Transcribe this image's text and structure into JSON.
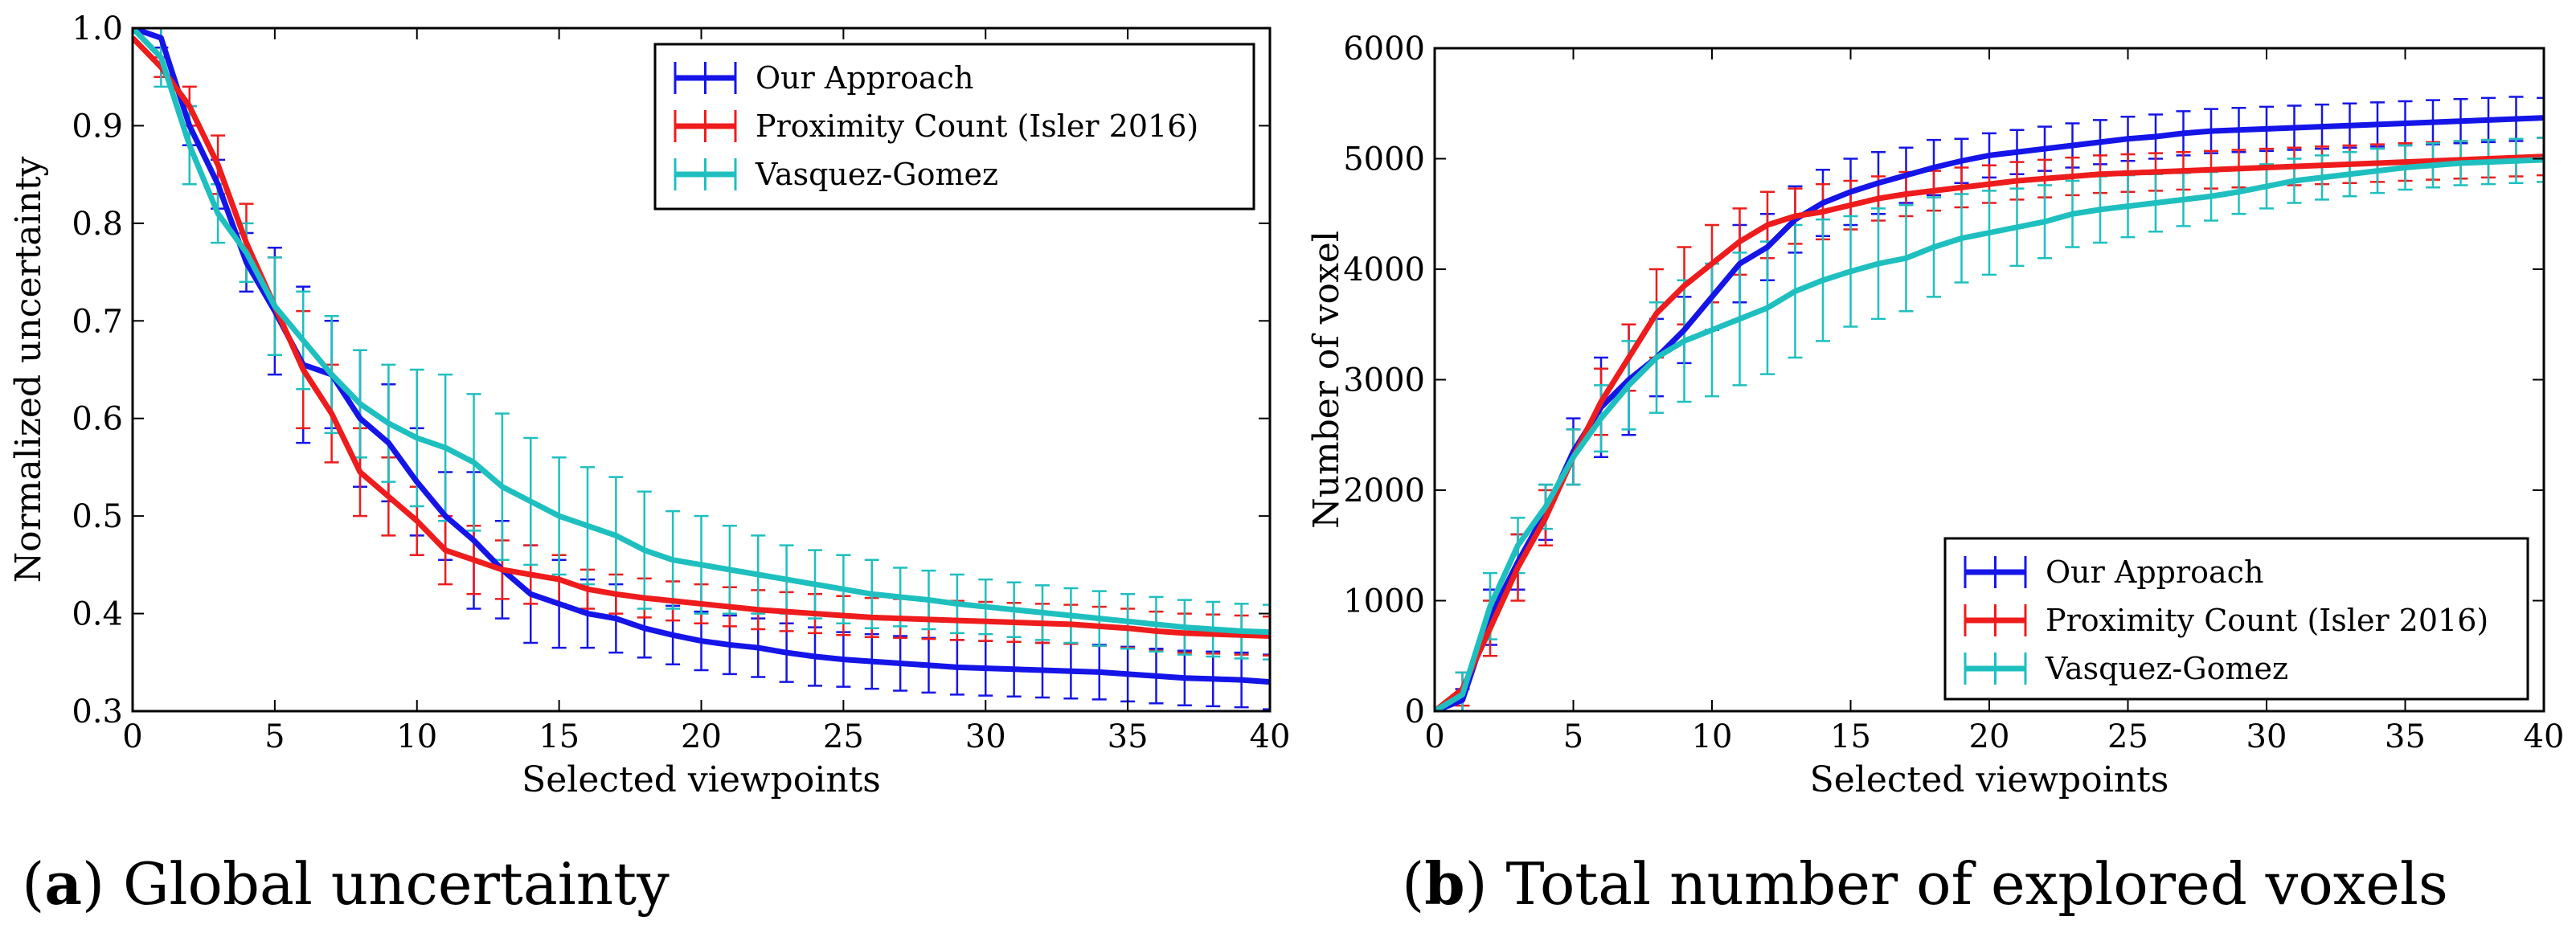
{
  "colors": {
    "our_approach": "#1515e8",
    "proximity": "#ee1c1c",
    "vasquez": "#1fbfbf",
    "axis": "#000000"
  },
  "captions": [
    {
      "letter": "a",
      "text": " Global uncertainty"
    },
    {
      "letter": "b",
      "text": " Total number of explored voxels"
    }
  ],
  "chart_data": [
    {
      "type": "line",
      "id": "a",
      "title": "",
      "xlabel": "Selected viewpoints",
      "ylabel": "Normalized uncertainty",
      "xlim": [
        0,
        40
      ],
      "ylim": [
        0.3,
        1.0
      ],
      "xticks": [
        0,
        5,
        10,
        15,
        20,
        25,
        30,
        35,
        40
      ],
      "yticks": [
        0.3,
        0.4,
        0.5,
        0.6,
        0.7,
        0.8,
        0.9,
        1.0
      ],
      "ytick_labels": [
        "0.3",
        "0.4",
        "0.5",
        "0.6",
        "0.7",
        "0.8",
        "0.9",
        "1.0"
      ],
      "legend_position": "top-right",
      "series": [
        {
          "name": "Our Approach",
          "color_key": "our_approach",
          "x": [
            0,
            1,
            2,
            3,
            4,
            5,
            6,
            7,
            8,
            9,
            10,
            11,
            12,
            13,
            14,
            15,
            16,
            17,
            18,
            19,
            20,
            21,
            22,
            23,
            24,
            25,
            26,
            27,
            28,
            29,
            30,
            31,
            32,
            33,
            34,
            35,
            36,
            37,
            38,
            39,
            40
          ],
          "y": [
            1.0,
            0.99,
            0.9,
            0.84,
            0.76,
            0.71,
            0.655,
            0.645,
            0.6,
            0.575,
            0.535,
            0.5,
            0.475,
            0.445,
            0.42,
            0.41,
            0.4,
            0.395,
            0.385,
            0.378,
            0.372,
            0.368,
            0.365,
            0.36,
            0.356,
            0.353,
            0.351,
            0.349,
            0.347,
            0.345,
            0.344,
            0.343,
            0.342,
            0.341,
            0.34,
            0.338,
            0.336,
            0.334,
            0.333,
            0.332,
            0.33
          ],
          "err": [
            0.0,
            0.01,
            0.02,
            0.025,
            0.03,
            0.065,
            0.08,
            0.055,
            0.07,
            0.06,
            0.055,
            0.045,
            0.07,
            0.05,
            0.05,
            0.045,
            0.035,
            0.035,
            0.03,
            0.03,
            0.03,
            0.03,
            0.03,
            0.03,
            0.03,
            0.028,
            0.028,
            0.028,
            0.028,
            0.028,
            0.028,
            0.028,
            0.028,
            0.028,
            0.028,
            0.028,
            0.028,
            0.028,
            0.028,
            0.028,
            0.028
          ]
        },
        {
          "name": "Proximity Count (Isler 2016)",
          "color_key": "proximity",
          "x": [
            0,
            1,
            2,
            3,
            4,
            5,
            6,
            7,
            8,
            9,
            10,
            11,
            12,
            13,
            14,
            15,
            16,
            17,
            18,
            19,
            20,
            21,
            22,
            23,
            24,
            25,
            26,
            27,
            28,
            29,
            30,
            31,
            32,
            33,
            34,
            35,
            36,
            37,
            38,
            39,
            40
          ],
          "y": [
            0.99,
            0.96,
            0.92,
            0.86,
            0.78,
            0.715,
            0.65,
            0.605,
            0.545,
            0.52,
            0.495,
            0.465,
            0.455,
            0.445,
            0.44,
            0.435,
            0.425,
            0.42,
            0.416,
            0.413,
            0.41,
            0.407,
            0.404,
            0.402,
            0.4,
            0.398,
            0.396,
            0.395,
            0.394,
            0.393,
            0.392,
            0.391,
            0.39,
            0.389,
            0.387,
            0.385,
            0.382,
            0.38,
            0.379,
            0.378,
            0.377
          ],
          "err": [
            0.0,
            0.01,
            0.02,
            0.03,
            0.04,
            0.05,
            0.06,
            0.05,
            0.045,
            0.04,
            0.035,
            0.035,
            0.035,
            0.03,
            0.03,
            0.025,
            0.02,
            0.02,
            0.02,
            0.02,
            0.02,
            0.02,
            0.02,
            0.02,
            0.02,
            0.02,
            0.02,
            0.02,
            0.02,
            0.02,
            0.02,
            0.02,
            0.02,
            0.02,
            0.02,
            0.02,
            0.02,
            0.02,
            0.02,
            0.02,
            0.02
          ]
        },
        {
          "name": "Vasquez-Gomez",
          "color_key": "vasquez",
          "x": [
            0,
            1,
            2,
            3,
            4,
            5,
            6,
            7,
            8,
            9,
            10,
            11,
            12,
            13,
            14,
            15,
            16,
            17,
            18,
            19,
            20,
            21,
            22,
            23,
            24,
            25,
            26,
            27,
            28,
            29,
            30,
            31,
            32,
            33,
            34,
            35,
            36,
            37,
            38,
            39,
            40
          ],
          "y": [
            1.0,
            0.97,
            0.88,
            0.81,
            0.77,
            0.715,
            0.68,
            0.645,
            0.615,
            0.595,
            0.58,
            0.57,
            0.555,
            0.53,
            0.515,
            0.5,
            0.49,
            0.48,
            0.465,
            0.455,
            0.45,
            0.445,
            0.44,
            0.435,
            0.43,
            0.425,
            0.42,
            0.417,
            0.414,
            0.41,
            0.407,
            0.404,
            0.401,
            0.398,
            0.395,
            0.392,
            0.389,
            0.386,
            0.384,
            0.382,
            0.381
          ],
          "err": [
            0.0,
            0.03,
            0.04,
            0.03,
            0.03,
            0.05,
            0.05,
            0.06,
            0.055,
            0.06,
            0.07,
            0.075,
            0.07,
            0.075,
            0.065,
            0.06,
            0.06,
            0.06,
            0.06,
            0.05,
            0.05,
            0.045,
            0.04,
            0.035,
            0.035,
            0.035,
            0.035,
            0.03,
            0.03,
            0.03,
            0.028,
            0.028,
            0.028,
            0.028,
            0.028,
            0.028,
            0.028,
            0.028,
            0.028,
            0.028,
            0.028
          ]
        }
      ]
    },
    {
      "type": "line",
      "id": "b",
      "title": "",
      "xlabel": "Selected viewpoints",
      "ylabel": "Number of voxel",
      "xlim": [
        0,
        40
      ],
      "ylim": [
        0,
        6000
      ],
      "xticks": [
        0,
        5,
        10,
        15,
        20,
        25,
        30,
        35,
        40
      ],
      "yticks": [
        0,
        1000,
        2000,
        3000,
        4000,
        5000,
        6000
      ],
      "ytick_labels": [
        "0",
        "1000",
        "2000",
        "3000",
        "4000",
        "5000",
        "6000"
      ],
      "legend_position": "lower-right",
      "series": [
        {
          "name": "Our Approach",
          "color_key": "our_approach",
          "x": [
            0,
            1,
            2,
            3,
            4,
            5,
            6,
            7,
            8,
            9,
            10,
            11,
            12,
            13,
            14,
            15,
            16,
            17,
            18,
            19,
            20,
            21,
            22,
            23,
            24,
            25,
            26,
            27,
            28,
            29,
            30,
            31,
            32,
            33,
            34,
            35,
            36,
            37,
            38,
            39,
            40
          ],
          "y": [
            0,
            100,
            850,
            1350,
            1800,
            2350,
            2750,
            3000,
            3200,
            3450,
            3750,
            4050,
            4200,
            4450,
            4600,
            4700,
            4780,
            4850,
            4920,
            4980,
            5030,
            5060,
            5090,
            5120,
            5150,
            5180,
            5200,
            5230,
            5250,
            5260,
            5270,
            5280,
            5290,
            5300,
            5310,
            5320,
            5330,
            5340,
            5350,
            5360,
            5370
          ],
          "err": [
            0,
            100,
            250,
            250,
            250,
            300,
            450,
            500,
            350,
            300,
            300,
            350,
            300,
            300,
            300,
            300,
            280,
            250,
            250,
            200,
            200,
            200,
            200,
            200,
            200,
            200,
            200,
            200,
            200,
            200,
            200,
            200,
            200,
            200,
            200,
            200,
            200,
            200,
            200,
            200,
            180
          ]
        },
        {
          "name": "Proximity Count (Isler 2016)",
          "color_key": "proximity",
          "x": [
            0,
            1,
            2,
            3,
            4,
            5,
            6,
            7,
            8,
            9,
            10,
            11,
            12,
            13,
            14,
            15,
            16,
            17,
            18,
            19,
            20,
            21,
            22,
            23,
            24,
            25,
            26,
            27,
            28,
            29,
            30,
            31,
            32,
            33,
            34,
            35,
            36,
            37,
            38,
            39,
            40
          ],
          "y": [
            0,
            200,
            750,
            1300,
            1750,
            2300,
            2800,
            3200,
            3600,
            3850,
            4050,
            4250,
            4400,
            4480,
            4520,
            4580,
            4640,
            4680,
            4710,
            4740,
            4770,
            4800,
            4820,
            4840,
            4860,
            4870,
            4880,
            4890,
            4900,
            4910,
            4920,
            4930,
            4940,
            4950,
            4960,
            4970,
            4980,
            4990,
            5000,
            5010,
            5020
          ],
          "err": [
            0,
            150,
            250,
            300,
            250,
            250,
            300,
            300,
            400,
            350,
            350,
            300,
            300,
            250,
            250,
            220,
            200,
            200,
            180,
            180,
            170,
            170,
            170,
            170,
            170,
            170,
            170,
            170,
            170,
            170,
            170,
            170,
            170,
            170,
            170,
            170,
            170,
            170,
            170,
            170,
            170
          ]
        },
        {
          "name": "Vasquez-Gomez",
          "color_key": "vasquez",
          "x": [
            0,
            1,
            2,
            3,
            4,
            5,
            6,
            7,
            8,
            9,
            10,
            11,
            12,
            13,
            14,
            15,
            16,
            17,
            18,
            19,
            20,
            21,
            22,
            23,
            24,
            25,
            26,
            27,
            28,
            29,
            30,
            31,
            32,
            33,
            34,
            35,
            36,
            37,
            38,
            39,
            40
          ],
          "y": [
            0,
            150,
            950,
            1500,
            1850,
            2300,
            2650,
            2950,
            3200,
            3350,
            3450,
            3550,
            3650,
            3800,
            3900,
            3980,
            4050,
            4100,
            4200,
            4280,
            4330,
            4380,
            4430,
            4500,
            4540,
            4570,
            4600,
            4630,
            4660,
            4700,
            4750,
            4800,
            4830,
            4860,
            4890,
            4920,
            4940,
            4960,
            4970,
            4980,
            4990
          ],
          "err": [
            0,
            200,
            300,
            250,
            200,
            250,
            300,
            400,
            500,
            550,
            600,
            600,
            600,
            600,
            550,
            500,
            500,
            480,
            450,
            400,
            380,
            350,
            330,
            300,
            300,
            280,
            260,
            240,
            220,
            200,
            200,
            200,
            200,
            200,
            200,
            200,
            200,
            200,
            200,
            200,
            200
          ]
        }
      ]
    }
  ]
}
